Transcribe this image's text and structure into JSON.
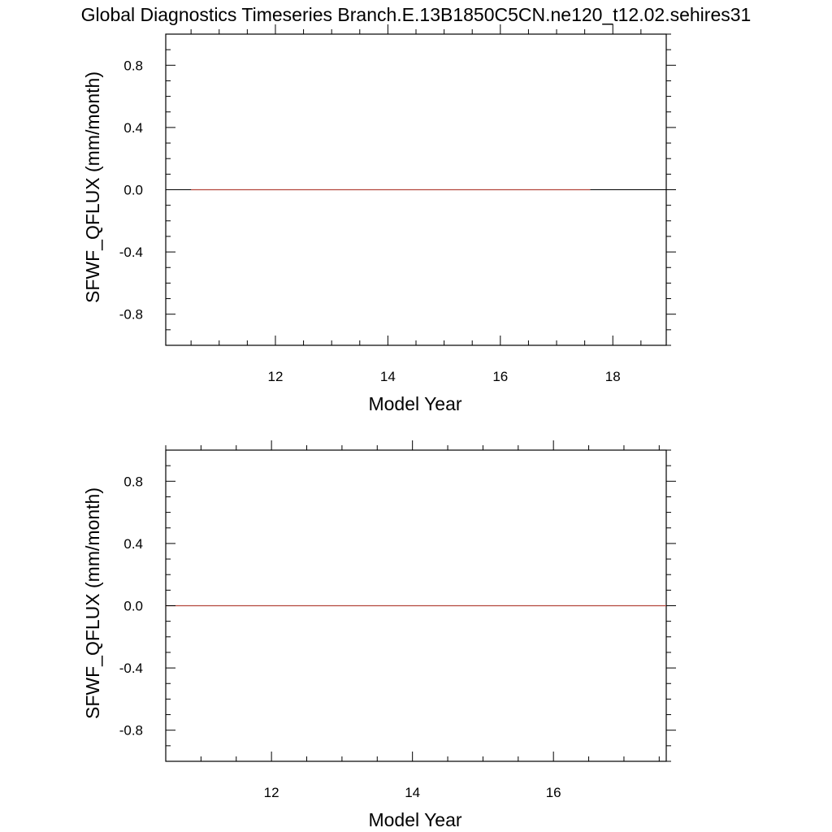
{
  "title": "Global Diagnostics Timeseries Branch.E.13B1850C5CN.ne120_t12.02.sehires31",
  "colors": {
    "axis": "#000000",
    "zero_line": "#000000",
    "series": "#b4463c"
  },
  "chart_data": [
    {
      "type": "line",
      "xlabel": "Model Year",
      "ylabel": "SFWF_QFLUX (mm/month)",
      "xlim": [
        10.05,
        18.95
      ],
      "ylim": [
        -1.0,
        1.0
      ],
      "xticks": [
        12,
        14,
        16,
        18
      ],
      "xtick_labels": [
        "12",
        "14",
        "16",
        "18"
      ],
      "yticks": [
        0.8,
        0.4,
        0.0,
        -0.4,
        -0.8
      ],
      "ytick_labels": [
        "0.8",
        "0.4",
        "0.0",
        "-0.4",
        "-0.8"
      ],
      "grid": false,
      "series": [
        {
          "x": [
            10.5,
            17.6
          ],
          "y": [
            0.0,
            0.0
          ]
        }
      ]
    },
    {
      "type": "line",
      "xlabel": "Model Year",
      "ylabel": "SFWF_QFLUX (mm/month)",
      "xlim": [
        10.5,
        17.6
      ],
      "ylim": [
        -1.0,
        1.0
      ],
      "xticks": [
        12,
        14,
        16
      ],
      "xtick_labels": [
        "12",
        "14",
        "16"
      ],
      "yticks": [
        0.8,
        0.4,
        0.0,
        -0.4,
        -0.8
      ],
      "ytick_labels": [
        "0.8",
        "0.4",
        "0.0",
        "-0.4",
        "-0.8"
      ],
      "grid": false,
      "series": [
        {
          "x": [
            10.5,
            17.6
          ],
          "y": [
            0.0,
            0.0
          ]
        }
      ]
    }
  ]
}
